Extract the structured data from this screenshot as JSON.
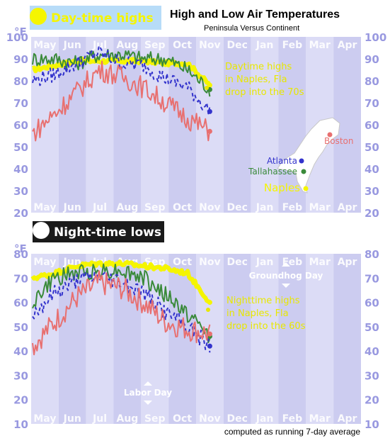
{
  "header": {
    "title": "High and Low Air Temperatures",
    "subtitle": "Peninsula Versus Continent"
  },
  "footer_note": "computed as running 7-day average",
  "colors": {
    "background_band_a": "#dcdcf6",
    "background_band_b": "#ccccf0",
    "naples": "#f5f500",
    "tallahassee": "#3a8a3a",
    "atlanta": "#3333cc",
    "boston": "#e87070",
    "axis_text": "#9999e0",
    "annotation_yellow": "#e8e800"
  },
  "chart_data": [
    {
      "type": "line",
      "panel_label": "Day-time highs",
      "y_unit": "°F",
      "ylim": [
        20,
        100
      ],
      "y_ticks": [
        20,
        30,
        40,
        50,
        60,
        70,
        80,
        90,
        100
      ],
      "x_ticks": [
        "May",
        "Jun",
        "Jul",
        "Aug",
        "Sep",
        "Oct",
        "Nov",
        "Dec",
        "Jan",
        "Feb",
        "Mar",
        "Apr"
      ],
      "series": [
        {
          "name": "Naples",
          "style": "solid-thick",
          "values": [
            85,
            87,
            89,
            89,
            89,
            89,
            88,
            88,
            78
          ]
        },
        {
          "name": "Tallahassee",
          "style": "solid",
          "values": [
            90,
            90,
            88,
            92,
            92,
            90,
            90,
            85,
            76
          ]
        },
        {
          "name": "Atlanta",
          "style": "dashed",
          "values": [
            80,
            83,
            88,
            93,
            88,
            87,
            81,
            77,
            66
          ]
        },
        {
          "name": "Boston",
          "style": "solid",
          "values": [
            56,
            65,
            75,
            85,
            82,
            77,
            70,
            63,
            57
          ]
        }
      ],
      "annotation": "Daytime highs in Naples, Fla drop into the 70s",
      "inset_map": {
        "labels": [
          "Boston",
          "Atlanta",
          "Tallahassee",
          "Naples"
        ]
      }
    },
    {
      "type": "line",
      "panel_label": "Night-time lows",
      "y_unit": "°F",
      "ylim": [
        10,
        80
      ],
      "y_ticks": [
        10,
        20,
        30,
        40,
        50,
        60,
        70,
        80
      ],
      "x_ticks": [
        "May",
        "Jun",
        "Jul",
        "Aug",
        "Sep",
        "Oct",
        "Nov",
        "Dec",
        "Jan",
        "Feb",
        "Mar",
        "Apr"
      ],
      "series": [
        {
          "name": "Naples",
          "style": "solid-thick",
          "values": [
            70,
            72,
            75,
            76,
            76,
            75,
            74,
            72,
            60
          ]
        },
        {
          "name": "Tallahassee",
          "style": "solid",
          "values": [
            60,
            70,
            72,
            73,
            73,
            70,
            63,
            55,
            46
          ]
        },
        {
          "name": "Atlanta",
          "style": "dashed",
          "values": [
            55,
            64,
            69,
            71,
            69,
            64,
            56,
            50,
            42
          ]
        },
        {
          "name": "Boston",
          "style": "solid",
          "values": [
            42,
            52,
            62,
            68,
            66,
            60,
            52,
            49,
            47
          ]
        }
      ],
      "annotation": "Nighttime highs in Naples, Fla drop into the 60s",
      "markers": [
        "Groundhog Day",
        "Labor Day"
      ]
    }
  ]
}
